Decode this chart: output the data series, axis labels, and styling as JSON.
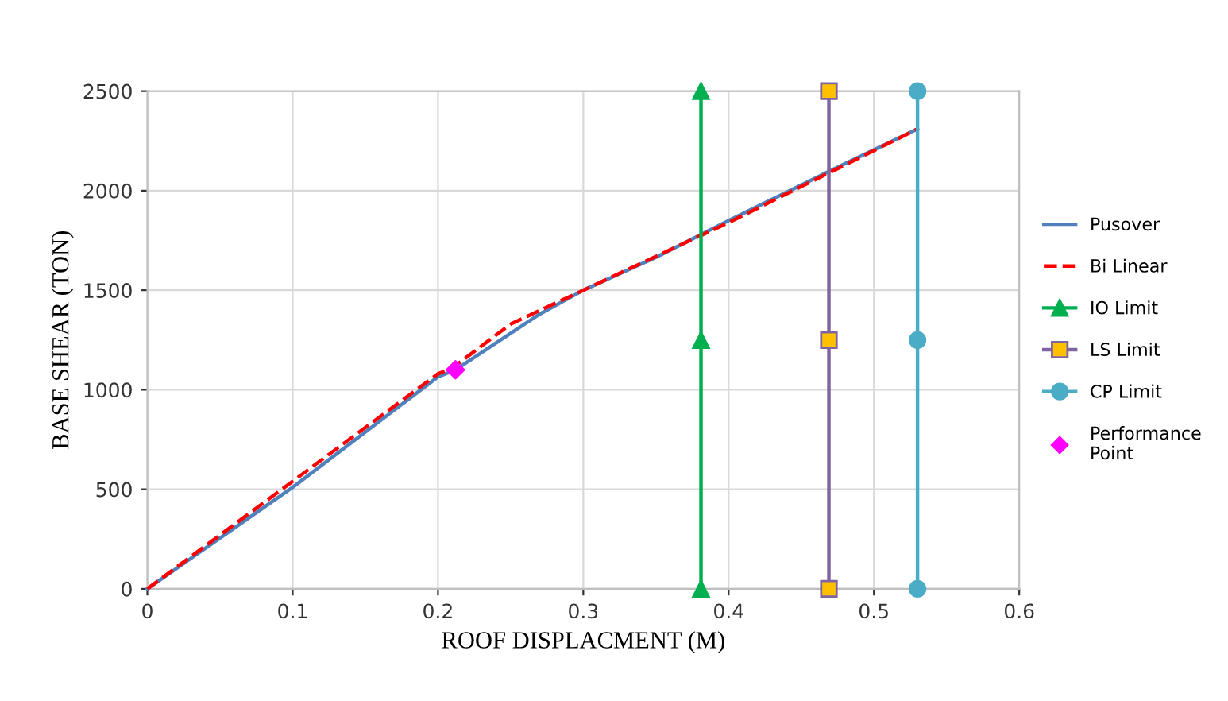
{
  "chart_data": {
    "type": "line",
    "xlabel": "ROOF DISPLACMENT (M)",
    "ylabel": "BASE SHEAR (TON)",
    "xlim": [
      0,
      0.6
    ],
    "xticks": [
      0,
      0.1,
      0.2,
      0.3,
      0.4,
      0.5,
      0.6
    ],
    "ylim": [
      0,
      2500
    ],
    "yticks": [
      0,
      500,
      1000,
      1500,
      2000,
      2500
    ],
    "grid": true,
    "legend": "right",
    "series": [
      {
        "name": "Pusover",
        "color": "#4f81bd",
        "marker": "none",
        "line_style": "solid",
        "x": [
          0,
          0.1,
          0.2,
          0.212,
          0.27,
          0.3,
          0.35,
          0.4,
          0.47,
          0.53
        ],
        "values": [
          0,
          510,
          1065,
          1100,
          1380,
          1500,
          1665,
          1850,
          2100,
          2310
        ]
      },
      {
        "name": "Bi Linear",
        "color": "#ff0000",
        "marker": "none",
        "line_style": "dashed",
        "x": [
          0,
          0.2,
          0.21,
          0.25,
          0.3,
          0.4,
          0.53
        ],
        "values": [
          0,
          1080,
          1110,
          1330,
          1500,
          1840,
          2310
        ]
      },
      {
        "name": "IO Limit",
        "color": "#00b050",
        "marker": "triangle",
        "line_style": "solid",
        "x": [
          0.381,
          0.381,
          0.381
        ],
        "values": [
          0,
          1250,
          2500
        ]
      },
      {
        "name": "LS Limit",
        "color": "#8064a2",
        "marker": "square",
        "line_style": "solid",
        "x": [
          0.469,
          0.469,
          0.469
        ],
        "values": [
          0,
          1250,
          2500
        ]
      },
      {
        "name": "CP Limit",
        "color": "#4bacc6",
        "marker": "circle",
        "line_style": "solid",
        "x": [
          0.53,
          0.53,
          0.53
        ],
        "values": [
          0,
          1250,
          2500
        ]
      },
      {
        "name": "Performance\nPoint",
        "type": "scatter",
        "color": "#ff00ff",
        "marker": "diamond",
        "x": [
          0.212
        ],
        "values": [
          1100
        ]
      }
    ]
  }
}
